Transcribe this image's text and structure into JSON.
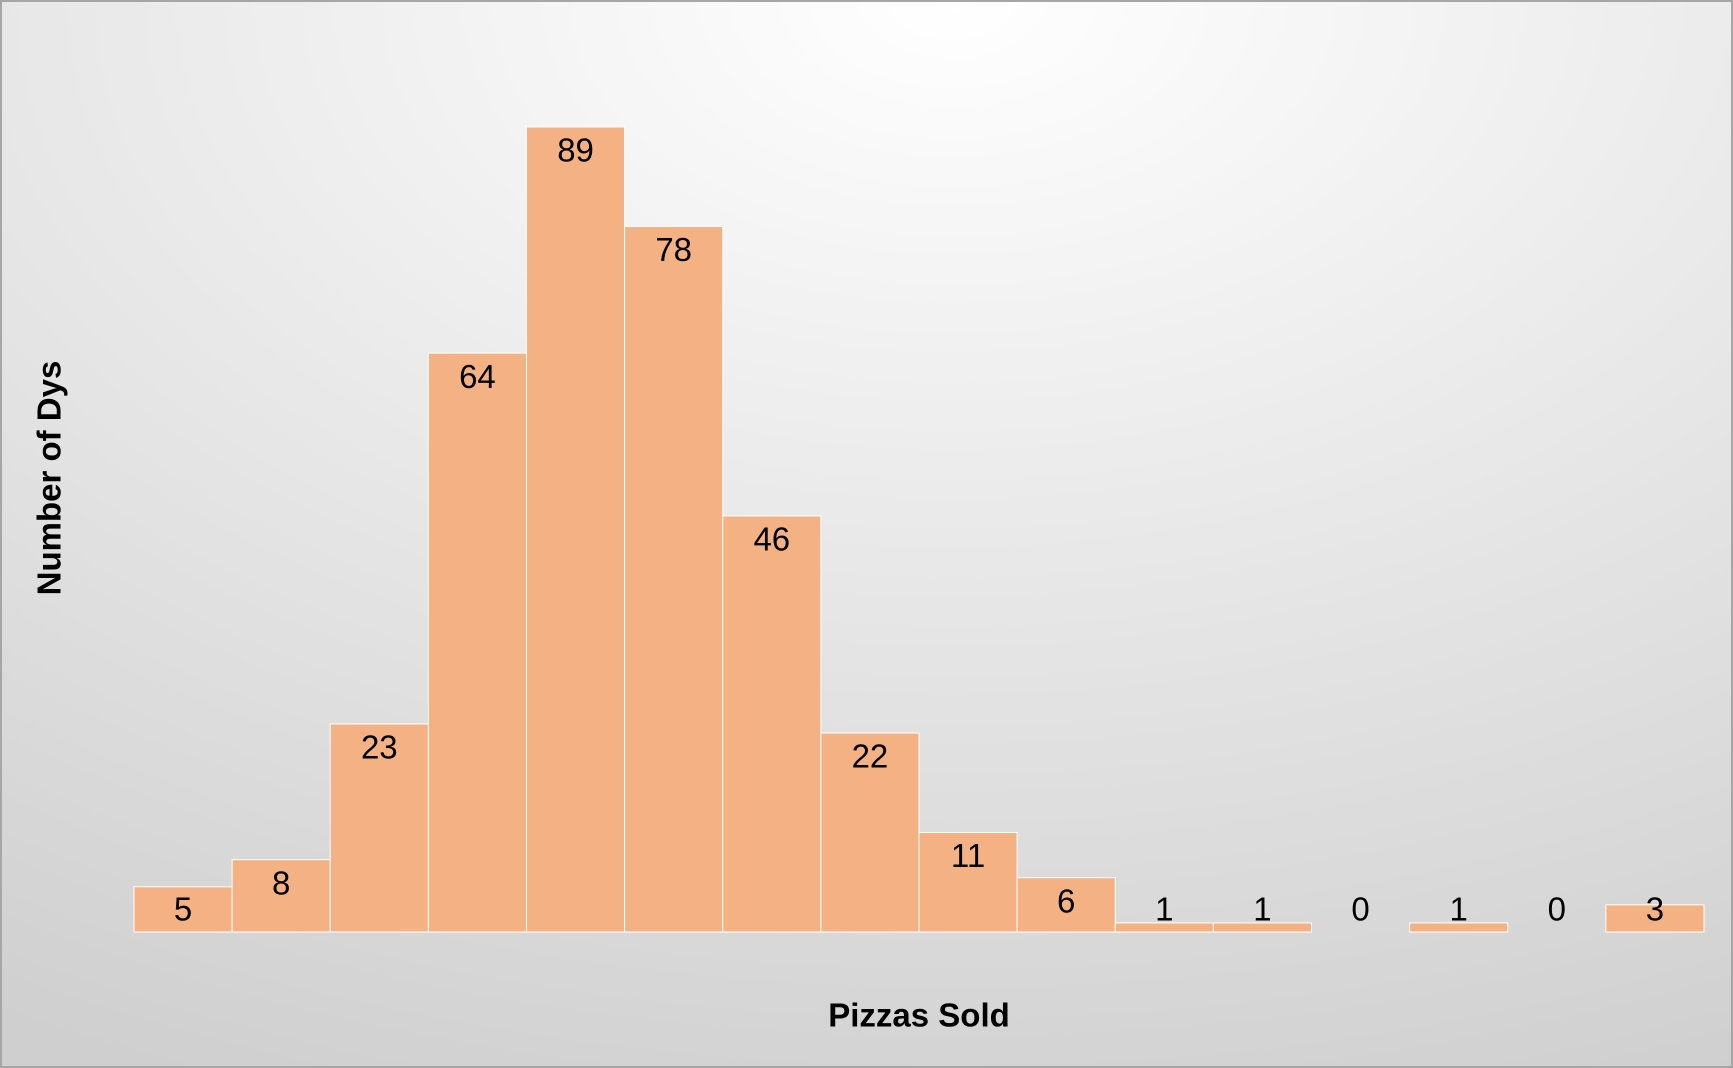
{
  "chart_data": {
    "type": "bar",
    "values": [
      5,
      8,
      23,
      64,
      89,
      78,
      46,
      22,
      11,
      6,
      1,
      1,
      0,
      1,
      0,
      3
    ],
    "color": "#f4b183",
    "xlabel": "Pizzas Sold",
    "ylabel": "Number of Dys"
  }
}
